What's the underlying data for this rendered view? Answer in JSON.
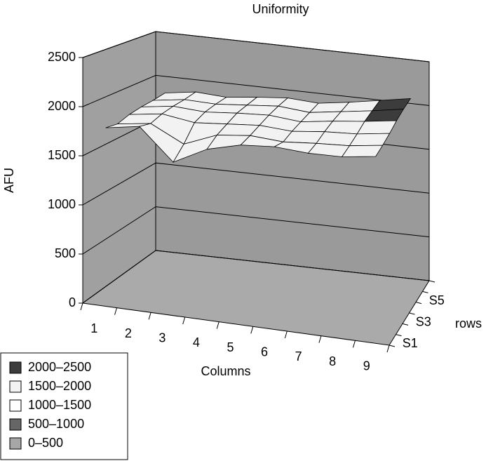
{
  "chart_data": {
    "type": "surface",
    "title": "Uniformity",
    "y_label": "AFU",
    "x_label": "Columns",
    "depth_label": "rows",
    "categories": [
      "1",
      "2",
      "3",
      "4",
      "5",
      "6",
      "7",
      "8",
      "9"
    ],
    "rows": [
      "S1",
      null,
      "S3",
      null,
      "S5",
      null
    ],
    "z": [
      [
        1780,
        1840,
        1520,
        1700,
        1790,
        1820,
        1800,
        1810,
        1860
      ],
      [
        1760,
        1810,
        1640,
        1780,
        1820,
        1800,
        1830,
        1850,
        1900
      ],
      [
        1800,
        1850,
        1800,
        1830,
        1860,
        1840,
        1880,
        1900,
        1950
      ],
      [
        1820,
        1870,
        1850,
        1880,
        1900,
        1870,
        1920,
        1960,
        2010
      ],
      [
        1830,
        1880,
        1870,
        1900,
        1930,
        1900,
        1950,
        2000,
        2060
      ],
      [
        1850,
        1900,
        1880,
        1920,
        1950,
        1930,
        1980,
        2040,
        2100
      ]
    ],
    "ylim": [
      0,
      2500
    ],
    "yticks": [
      0,
      500,
      1000,
      1500,
      2000,
      2500
    ],
    "bands": [
      {
        "label": "2000–2500",
        "range": [
          2000,
          2500
        ],
        "color": "#3c3c3c"
      },
      {
        "label": "1500–2000",
        "range": [
          1500,
          2000
        ],
        "color": "#f2f2f2"
      },
      {
        "label": "1000–1500",
        "range": [
          1000,
          1500
        ],
        "color": "#ffffff"
      },
      {
        "label": "500–1000",
        "range": [
          500,
          1000
        ],
        "color": "#666666"
      },
      {
        "label": "0–500",
        "range": [
          0,
          500
        ],
        "color": "#a6a6a6"
      }
    ],
    "grid": true
  }
}
